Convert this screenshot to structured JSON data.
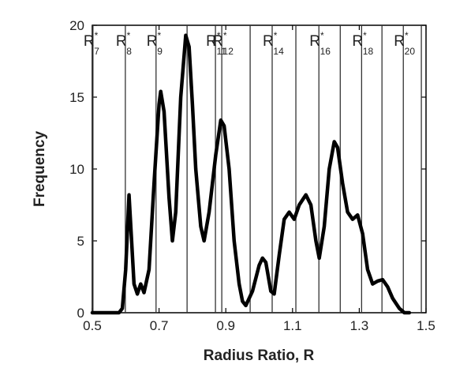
{
  "chart_data": {
    "type": "line",
    "xlabel": "Radius Ratio, R",
    "ylabel": "Frequency",
    "xlim": [
      0.5,
      1.5
    ],
    "ylim": [
      0,
      20
    ],
    "xticks": [
      0.5,
      0.7,
      0.9,
      1.1,
      1.3,
      1.5
    ],
    "yticks": [
      0,
      5,
      10,
      15,
      20
    ],
    "series": [
      {
        "color": "#000000",
        "x": [
          0.5,
          0.58,
          0.59,
          0.6,
          0.61,
          0.625,
          0.635,
          0.645,
          0.655,
          0.67,
          0.685,
          0.7,
          0.705,
          0.715,
          0.73,
          0.74,
          0.75,
          0.765,
          0.78,
          0.79,
          0.8,
          0.81,
          0.825,
          0.835,
          0.85,
          0.87,
          0.885,
          0.895,
          0.91,
          0.925,
          0.94,
          0.95,
          0.96,
          0.98,
          1.0,
          1.01,
          1.02,
          1.035,
          1.045,
          1.06,
          1.075,
          1.09,
          1.105,
          1.12,
          1.14,
          1.155,
          1.17,
          1.18,
          1.195,
          1.21,
          1.225,
          1.235,
          1.25,
          1.265,
          1.28,
          1.295,
          1.31,
          1.325,
          1.34,
          1.355,
          1.37,
          1.385,
          1.4,
          1.42,
          1.435,
          1.45
        ],
        "values": [
          0,
          0,
          0.3,
          3,
          8.2,
          2,
          1.3,
          2,
          1.4,
          3,
          9,
          14.5,
          15.4,
          14,
          8,
          5,
          7,
          15,
          19.3,
          18.5,
          14.5,
          10,
          6,
          5,
          7,
          11,
          13.4,
          13,
          10,
          5,
          2,
          0.8,
          0.5,
          1.5,
          3.3,
          3.8,
          3.5,
          1.5,
          1.3,
          4,
          6.5,
          7,
          6.5,
          7.5,
          8.2,
          7.5,
          5,
          3.8,
          6,
          10,
          11.9,
          11.5,
          9,
          7,
          6.5,
          6.8,
          5.5,
          3,
          2,
          2.2,
          2.3,
          1.8,
          1,
          0.3,
          0,
          0
        ]
      }
    ],
    "reference_lines": {
      "x": [
        0.502,
        0.599,
        0.691,
        0.784,
        0.869,
        0.888,
        0.973,
        1.039,
        1.11,
        1.179,
        1.243,
        1.307,
        1.368,
        1.432,
        1.486
      ],
      "labels": [
        {
          "base": "R",
          "sup": "*",
          "sub": "7"
        },
        {
          "base": "R",
          "sup": "*",
          "sub": "8"
        },
        {
          "base": "R",
          "sup": "*",
          "sub": "9"
        },
        null,
        {
          "base": "R",
          "sup": "*",
          "sub": "11"
        },
        {
          "base": "R",
          "sup": "*",
          "sub": "12"
        },
        null,
        {
          "base": "R",
          "sup": "*",
          "sub": "14"
        },
        null,
        {
          "base": "R",
          "sup": "*",
          "sub": "16"
        },
        null,
        {
          "base": "R",
          "sup": "*",
          "sub": "18"
        },
        null,
        {
          "base": "R",
          "sup": "*",
          "sub": "20"
        },
        null
      ]
    }
  }
}
